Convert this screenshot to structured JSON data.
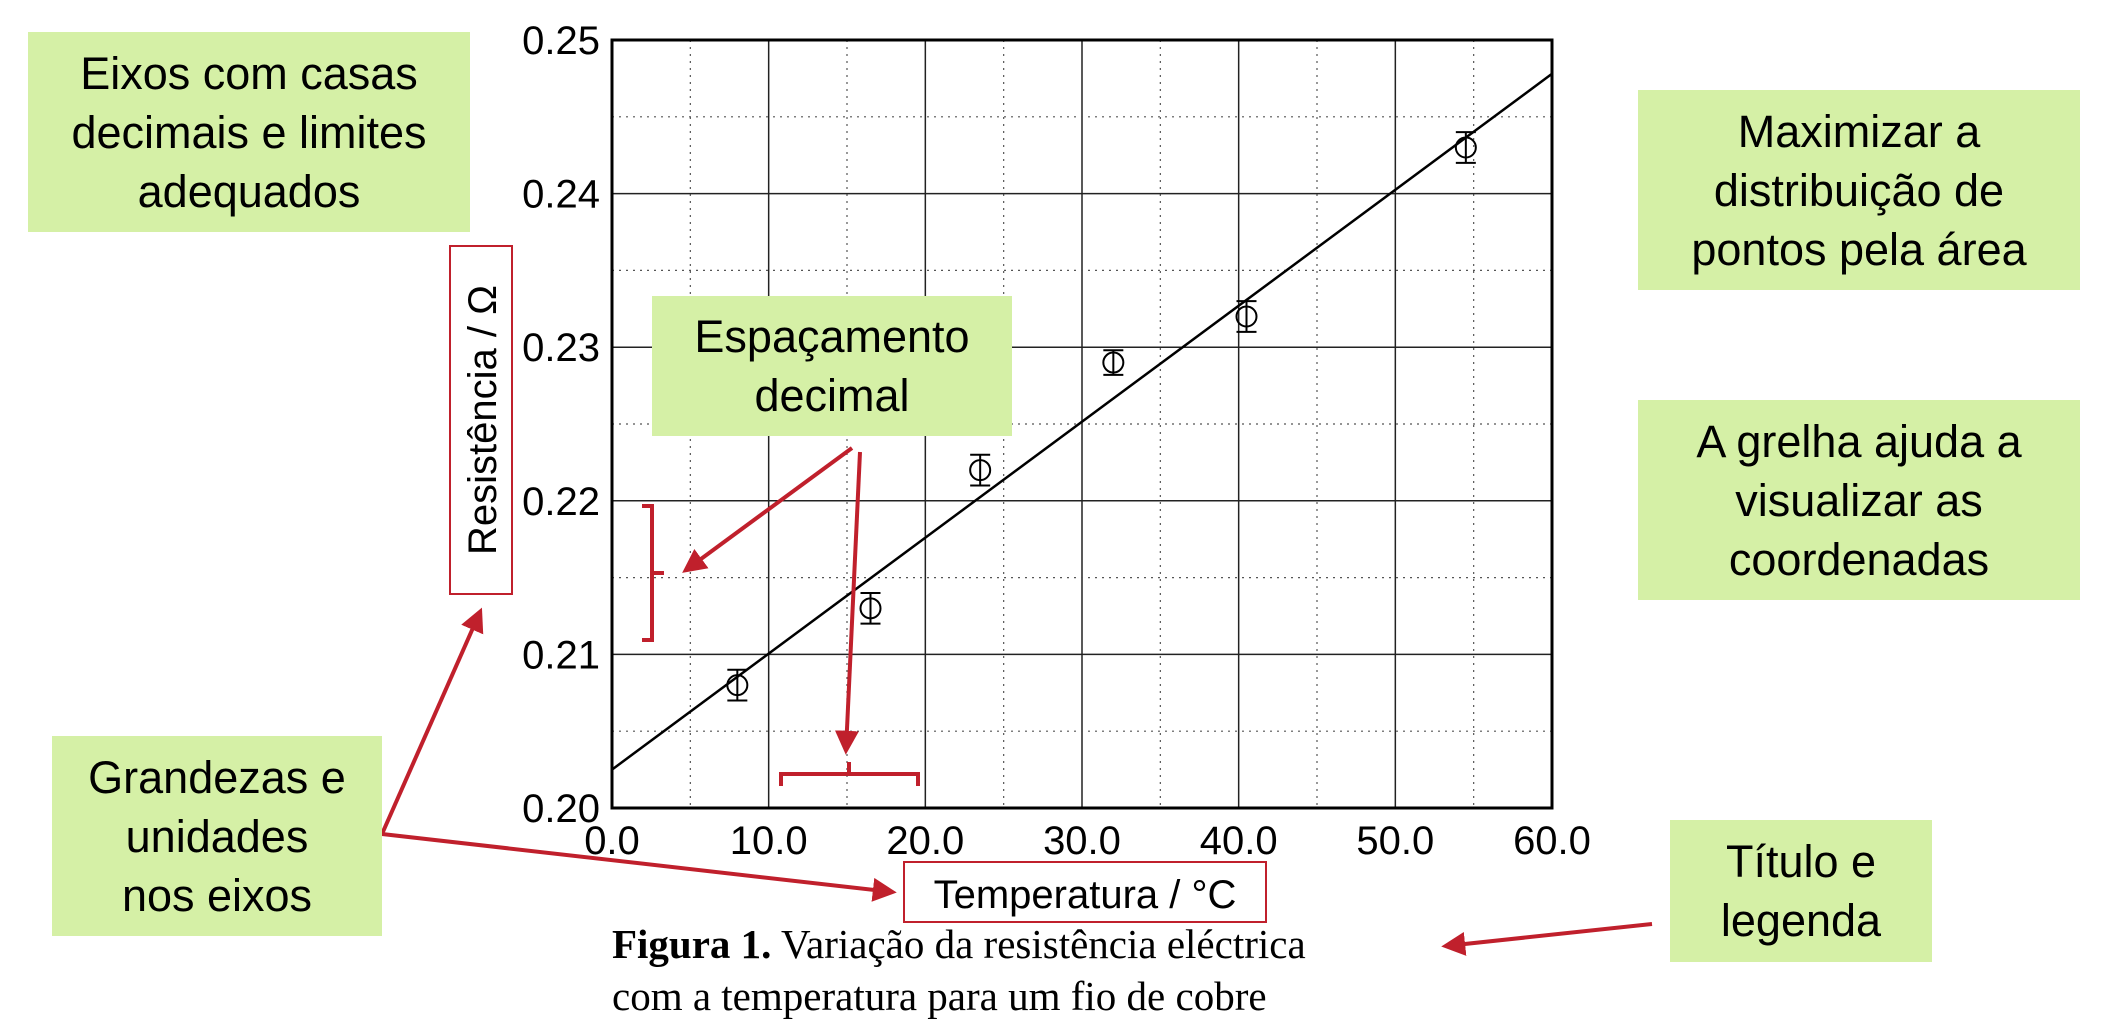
{
  "chart_data": {
    "type": "scatter",
    "xlabel": "Temperatura / °C",
    "ylabel": "Resistência / Ω",
    "xlim": [
      0.0,
      60.0
    ],
    "ylim": [
      0.2,
      0.25
    ],
    "xticks": [
      "0.0",
      "10.0",
      "20.0",
      "30.0",
      "40.0",
      "50.0",
      "60.0"
    ],
    "yticks": [
      "0.20",
      "0.21",
      "0.22",
      "0.23",
      "0.24",
      "0.25"
    ],
    "grid": true,
    "series": [
      {
        "points": [
          {
            "x": 8.0,
            "y": 0.208,
            "yerr": 0.001
          },
          {
            "x": 16.5,
            "y": 0.213,
            "yerr": 0.001
          },
          {
            "x": 23.5,
            "y": 0.222,
            "yerr": 0.001
          },
          {
            "x": 32.0,
            "y": 0.229,
            "yerr": 0.0008
          },
          {
            "x": 40.5,
            "y": 0.232,
            "yerr": 0.001
          },
          {
            "x": 54.5,
            "y": 0.243,
            "yerr": 0.001
          }
        ]
      }
    ],
    "fit_line": {
      "x": [
        0.0,
        60.0
      ],
      "y": [
        0.2025,
        0.2478
      ]
    }
  },
  "annotations": {
    "axes_decimals": [
      "Eixos com casas",
      "decimais e limites",
      "adequados"
    ],
    "decimal_spacing": [
      "Espaçamento",
      "decimal"
    ],
    "quantities_units": [
      "Grandezas e",
      "unidades",
      "nos eixos"
    ],
    "maximize_distribution": [
      "Maximizar a",
      "distribuição de",
      "pontos pela área"
    ],
    "grid_helps": [
      "A grelha ajuda a",
      "visualizar as",
      "coordenadas"
    ],
    "title_legend": [
      "Título e",
      "legenda"
    ]
  },
  "caption": {
    "label": "Figura 1.",
    "line1": "Variação da resistência eléctrica",
    "line2": "com a temperatura para um fio de cobre"
  },
  "colors": {
    "note_background": "#d5f0a6",
    "highlight_red": "#c0202c"
  }
}
